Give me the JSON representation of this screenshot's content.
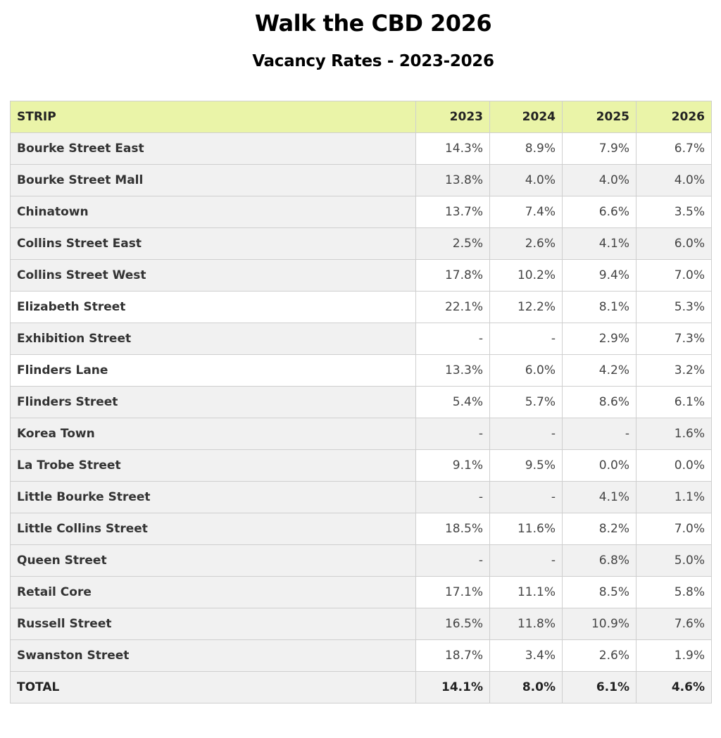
{
  "chart_data": {
    "type": "table",
    "title": "Walk the CBD 2026",
    "subtitle": "Vacancy Rates - 2023-2026",
    "columns": [
      "STRIP",
      "2023",
      "2024",
      "2025",
      "2026"
    ],
    "rows": [
      [
        "Bourke Street East",
        "14.3%",
        "8.9%",
        "7.9%",
        "6.7%"
      ],
      [
        "Bourke Street Mall",
        "13.8%",
        "4.0%",
        "4.0%",
        "4.0%"
      ],
      [
        "Chinatown",
        "13.7%",
        "7.4%",
        "6.6%",
        "3.5%"
      ],
      [
        "Collins Street East",
        "2.5%",
        "2.6%",
        "4.1%",
        "6.0%"
      ],
      [
        "Collins Street West",
        "17.8%",
        "10.2%",
        "9.4%",
        "7.0%"
      ],
      [
        "Elizabeth Street",
        "22.1%",
        "12.2%",
        "8.1%",
        "5.3%"
      ],
      [
        "Exhibition Street",
        "-",
        "-",
        "2.9%",
        "7.3%"
      ],
      [
        "Flinders Lane",
        "13.3%",
        "6.0%",
        "4.2%",
        "3.2%"
      ],
      [
        "Flinders Street",
        "5.4%",
        "5.7%",
        "8.6%",
        "6.1%"
      ],
      [
        "Korea Town",
        "-",
        "-",
        "-",
        "1.6%"
      ],
      [
        "La Trobe Street",
        "9.1%",
        "9.5%",
        "0.0%",
        "0.0%"
      ],
      [
        "Little Bourke Street",
        "-",
        "-",
        "4.1%",
        "1.1%"
      ],
      [
        "Little Collins Street",
        "18.5%",
        "11.6%",
        "8.2%",
        "7.0%"
      ],
      [
        "Queen Street",
        "-",
        "-",
        "6.8%",
        "5.0%"
      ],
      [
        "Retail Core",
        "17.1%",
        "11.1%",
        "8.5%",
        "5.8%"
      ],
      [
        "Russell Street",
        "16.5%",
        "11.8%",
        "10.9%",
        "7.6%"
      ],
      [
        "Swanston Street",
        "18.7%",
        "3.4%",
        "2.6%",
        "1.9%"
      ]
    ],
    "shaded_rows": [
      1,
      3,
      9,
      11,
      13,
      15
    ],
    "total": [
      "TOTAL",
      "14.1%",
      "8.0%",
      "6.1%",
      "4.6%"
    ],
    "colors": {
      "header_bg": "#eaf4a8",
      "shade_bg": "#f1f1f1",
      "border": "#cfcfcf"
    }
  }
}
